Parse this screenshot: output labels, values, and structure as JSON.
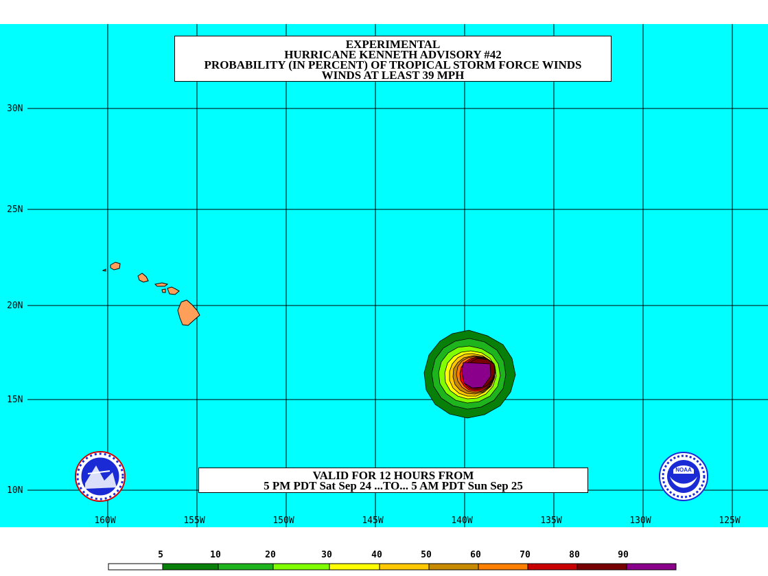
{
  "title": {
    "line1": "EXPERIMENTAL",
    "line2": "HURRICANE KENNETH ADVISORY #42",
    "line3": "PROBABILITY (IN PERCENT) OF TROPICAL STORM FORCE WINDS",
    "line4": "WINDS AT LEAST 39 MPH"
  },
  "valid": {
    "line1": "VALID FOR 12 HOURS FROM",
    "line2": "5 PM PDT Sat Sep 24 ...TO... 5 AM PDT Sun Sep 25"
  },
  "lat_labels": [
    "30N",
    "25N",
    "20N",
    "15N",
    "10N"
  ],
  "lon_labels": [
    "160W",
    "155W",
    "150W",
    "145W",
    "140W",
    "135W",
    "130W",
    "125W"
  ],
  "legend": {
    "labels": [
      "5",
      "10",
      "20",
      "30",
      "40",
      "50",
      "60",
      "70",
      "80",
      "90"
    ],
    "colors": [
      "#ffffff",
      "#087f08",
      "#1eb41e",
      "#00c800",
      "#7fff00",
      "#ffff00",
      "#ffc800",
      "#c88a00",
      "#ff7f00",
      "#ff0000",
      "#b00000",
      "#780000",
      "#8a008a"
    ]
  },
  "colors": {
    "ocean": "#00ffff",
    "land": "#ff9f5a"
  }
}
